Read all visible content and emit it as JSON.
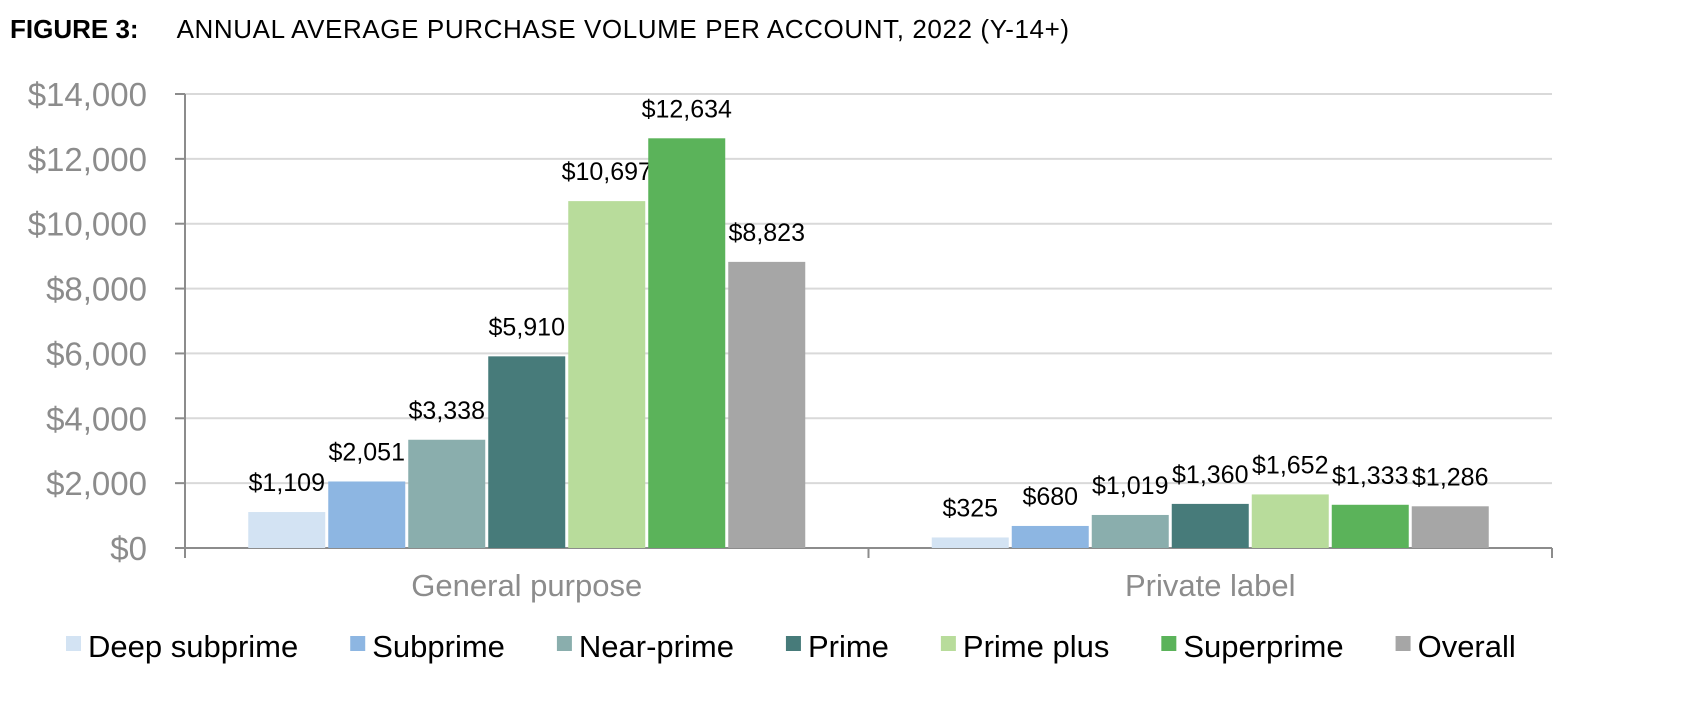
{
  "figure": {
    "label": "FIGURE 3:",
    "title": "ANNUAL AVERAGE PURCHASE VOLUME PER ACCOUNT, 2022 (Y-14+)"
  },
  "chart_data": {
    "type": "bar",
    "categories": [
      "General purpose",
      "Private label"
    ],
    "series": [
      {
        "name": "Deep subprime",
        "color": "#d3e3f3",
        "values": [
          1109,
          325
        ],
        "labels": [
          "$1,109",
          "$325"
        ]
      },
      {
        "name": "Subprime",
        "color": "#8db6e2",
        "values": [
          2051,
          680
        ],
        "labels": [
          "$2,051",
          "$680"
        ]
      },
      {
        "name": "Near-prime",
        "color": "#8aaead",
        "values": [
          3338,
          1019
        ],
        "labels": [
          "$3,338",
          "$1,019"
        ]
      },
      {
        "name": "Prime",
        "color": "#477b7a",
        "values": [
          5910,
          1360
        ],
        "labels": [
          "$5,910",
          "$1,360"
        ]
      },
      {
        "name": "Prime plus",
        "color": "#b8dc9b",
        "values": [
          10697,
          1652
        ],
        "labels": [
          "$10,697",
          "$1,652"
        ]
      },
      {
        "name": "Superprime",
        "color": "#5bb35a",
        "values": [
          12634,
          1333
        ],
        "labels": [
          "$12,634",
          "$1,333"
        ]
      },
      {
        "name": "Overall",
        "color": "#a6a6a6",
        "values": [
          8823,
          1286
        ],
        "labels": [
          "$8,823",
          "$1,286"
        ]
      }
    ],
    "ylim": [
      0,
      14000
    ],
    "yticks": [
      "$0",
      "$2,000",
      "$4,000",
      "$6,000",
      "$8,000",
      "$10,000",
      "$12,000",
      "$14,000"
    ],
    "grid": true,
    "legend": "bottom"
  }
}
